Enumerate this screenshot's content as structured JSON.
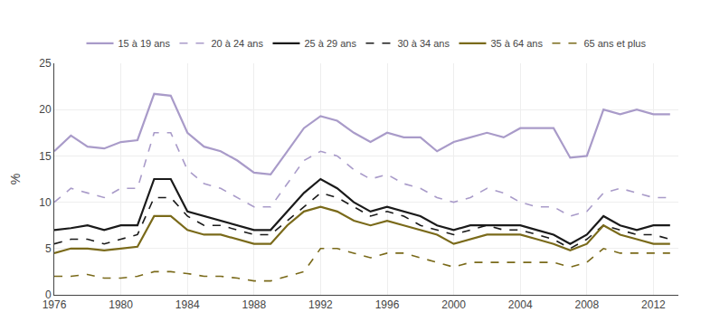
{
  "chart_data": {
    "type": "line",
    "ylabel": "%",
    "x": [
      1976,
      1977,
      1978,
      1979,
      1980,
      1981,
      1982,
      1983,
      1984,
      1985,
      1986,
      1987,
      1988,
      1989,
      1990,
      1991,
      1992,
      1993,
      1994,
      1995,
      1996,
      1997,
      1998,
      1999,
      2000,
      2001,
      2002,
      2003,
      2004,
      2005,
      2006,
      2007,
      2008,
      2009,
      2010,
      2011,
      2012,
      2013
    ],
    "series": [
      {
        "name": "15 à 19 ans",
        "color": "#a99bc9",
        "line_style": "solid",
        "values": [
          15.5,
          17.2,
          16.0,
          15.8,
          16.5,
          16.7,
          21.7,
          21.5,
          17.5,
          16.0,
          15.5,
          14.5,
          13.2,
          13.0,
          15.5,
          18.0,
          19.3,
          18.8,
          17.5,
          16.5,
          17.5,
          17.0,
          17.0,
          15.5,
          16.5,
          17.0,
          17.5,
          17.0,
          18.0,
          18.0,
          18.0,
          14.8,
          15.0,
          20.0,
          19.5,
          20.0,
          19.5,
          19.5
        ]
      },
      {
        "name": "20 à 24 ans",
        "color": "#a99bc9",
        "line_style": "dashed",
        "values": [
          10.0,
          11.5,
          11.0,
          10.5,
          11.5,
          11.5,
          17.5,
          17.5,
          13.5,
          12.0,
          11.5,
          10.5,
          9.5,
          9.5,
          12.0,
          14.5,
          15.5,
          15.0,
          13.5,
          12.5,
          13.0,
          12.0,
          11.5,
          10.5,
          10.0,
          10.5,
          11.5,
          11.0,
          10.0,
          9.5,
          9.5,
          8.5,
          9.0,
          11.0,
          11.5,
          11.0,
          10.5,
          10.5
        ]
      },
      {
        "name": "25 à 29 ans",
        "color": "#1a1a1a",
        "line_style": "solid",
        "values": [
          7.0,
          7.2,
          7.5,
          7.0,
          7.5,
          7.5,
          12.5,
          12.5,
          9.0,
          8.5,
          8.0,
          7.5,
          7.0,
          7.0,
          9.0,
          11.0,
          12.5,
          11.5,
          10.0,
          9.0,
          9.5,
          9.0,
          8.5,
          7.5,
          7.0,
          7.5,
          7.5,
          7.5,
          7.5,
          7.0,
          6.5,
          5.5,
          6.5,
          8.5,
          7.5,
          7.0,
          7.5,
          7.5
        ]
      },
      {
        "name": "30 à 34 ans",
        "color": "#1a1a1a",
        "line_style": "dashed",
        "values": [
          5.5,
          6.0,
          6.0,
          5.5,
          6.0,
          6.5,
          10.5,
          10.5,
          8.5,
          7.5,
          7.5,
          7.0,
          6.5,
          6.5,
          8.0,
          9.5,
          11.0,
          10.5,
          9.5,
          8.5,
          9.0,
          8.5,
          7.5,
          7.0,
          6.5,
          7.0,
          7.5,
          7.0,
          7.0,
          6.5,
          6.0,
          5.0,
          6.0,
          7.5,
          7.0,
          6.5,
          6.5,
          6.0
        ]
      },
      {
        "name": "35 à 64 ans",
        "color": "#7a6a1a",
        "line_style": "solid",
        "values": [
          4.5,
          5.0,
          5.0,
          4.8,
          5.0,
          5.2,
          8.5,
          8.5,
          7.0,
          6.5,
          6.5,
          6.0,
          5.5,
          5.5,
          7.5,
          9.0,
          9.5,
          9.0,
          8.0,
          7.5,
          8.0,
          7.5,
          7.0,
          6.5,
          5.5,
          6.0,
          6.5,
          6.5,
          6.5,
          6.0,
          5.5,
          4.8,
          5.5,
          7.5,
          6.5,
          6.0,
          5.5,
          5.5
        ]
      },
      {
        "name": "65 ans et plus",
        "color": "#7a6a1a",
        "line_style": "dashed",
        "values": [
          2.0,
          2.0,
          2.2,
          1.8,
          1.8,
          2.0,
          2.5,
          2.5,
          2.3,
          2.0,
          2.0,
          1.8,
          1.5,
          1.5,
          2.0,
          2.5,
          5.0,
          5.0,
          4.5,
          4.0,
          4.5,
          4.5,
          4.0,
          3.5,
          3.0,
          3.5,
          3.5,
          3.5,
          3.5,
          3.5,
          3.5,
          3.0,
          3.5,
          5.0,
          4.5,
          4.5,
          4.5,
          4.5
        ]
      }
    ],
    "xlim": [
      1976,
      2013.5
    ],
    "xticks": [
      1976,
      1980,
      1984,
      1988,
      1992,
      1996,
      2000,
      2004,
      2008,
      2012
    ],
    "ylim": [
      0,
      25
    ],
    "yticks": [
      0,
      5,
      10,
      15,
      20,
      25
    ],
    "grid": true,
    "legend": "top"
  }
}
